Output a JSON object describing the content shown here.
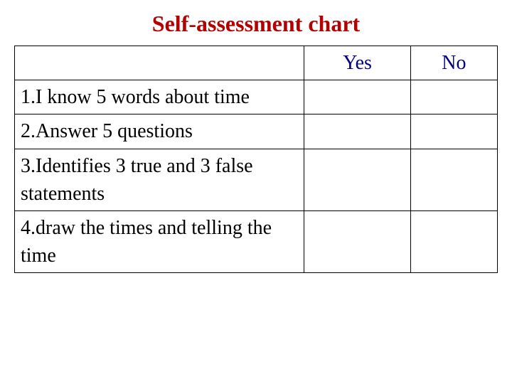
{
  "title": {
    "text": "Self-assessment chart",
    "color": "#b50000",
    "fontsize": 32
  },
  "table": {
    "border_color": "#000000",
    "background_color": "#ffffff",
    "fontsize": 28,
    "header": {
      "statement": "",
      "yes": "Yes",
      "no": "No",
      "text_color": "#000080"
    },
    "statement_color": "#000000",
    "rows": [
      {
        "statement": "1.I know 5 words about time",
        "yes": "",
        "no": ""
      },
      {
        "statement": "2.Answer 5 questions",
        "yes": "",
        "no": ""
      },
      {
        "statement": "3.Identifies 3 true and 3 false statements",
        "yes": "",
        "no": ""
      },
      {
        "statement": "4.draw the times and telling the time",
        "yes": "",
        "no": ""
      }
    ],
    "columns": {
      "statement_width_pct": 60,
      "yes_width_pct": 22,
      "no_width_pct": 18
    }
  }
}
